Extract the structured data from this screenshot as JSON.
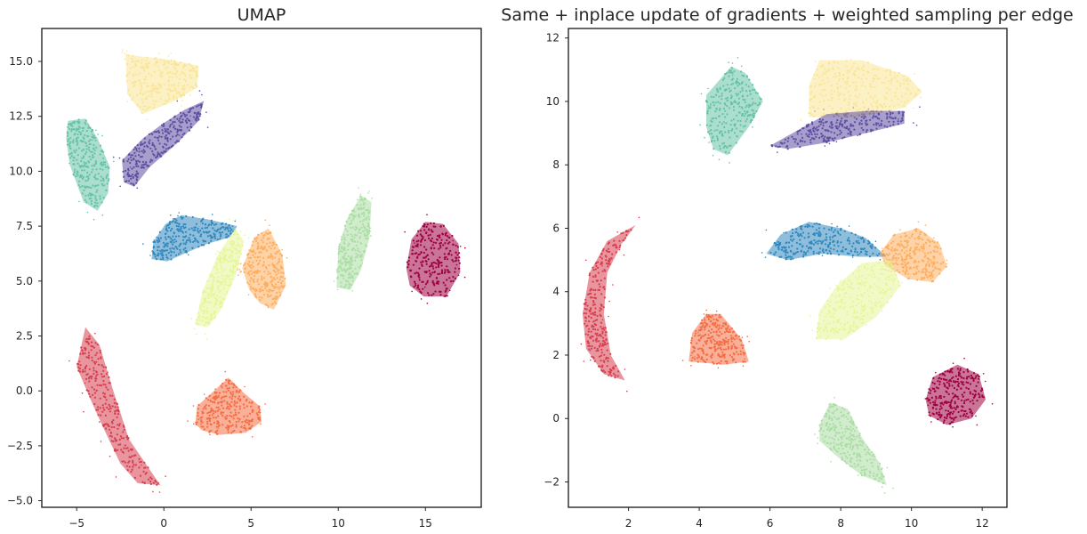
{
  "chart_data": [
    {
      "type": "scatter",
      "title": "UMAP",
      "xlabel": "",
      "ylabel": "",
      "xlim": [
        -7,
        18.2
      ],
      "ylim": [
        -5.3,
        16.5
      ],
      "xticks": [
        -5,
        0,
        5,
        10,
        15
      ],
      "yticks": [
        -5.0,
        -2.5,
        0.0,
        2.5,
        5.0,
        7.5,
        10.0,
        12.5,
        15.0
      ],
      "ytick_labels": [
        "−5.0",
        "−2.5",
        "0.0",
        "2.5",
        "5.0",
        "7.5",
        "10.0",
        "12.5",
        "15.0"
      ],
      "xtick_labels": [
        "−5",
        "0",
        "5",
        "10",
        "15"
      ],
      "grid": false,
      "clusters": [
        {
          "color": "#f9e596",
          "polygon": [
            [
              -2.2,
              15.3
            ],
            [
              0.2,
              15.1
            ],
            [
              2,
              14.8
            ],
            [
              1.9,
              13.8
            ],
            [
              0.6,
              13.2
            ],
            [
              -1.2,
              12.6
            ],
            [
              -2.1,
              13.5
            ]
          ]
        },
        {
          "color": "#5e4fa2",
          "polygon": [
            [
              -2.3,
              9.5
            ],
            [
              -2.4,
              10.5
            ],
            [
              -1.2,
              11.5
            ],
            [
              0,
              12.2
            ],
            [
              1.2,
              12.8
            ],
            [
              2.3,
              13.2
            ],
            [
              2.0,
              12.3
            ],
            [
              0.8,
              11.3
            ],
            [
              -0.8,
              10.2
            ],
            [
              -1.7,
              9.3
            ]
          ]
        },
        {
          "color": "#66c2a5",
          "polygon": [
            [
              -5.5,
              12.3
            ],
            [
              -4.5,
              12.4
            ],
            [
              -3.8,
              11.5
            ],
            [
              -3.1,
              10.2
            ],
            [
              -3.2,
              9.0
            ],
            [
              -3.8,
              8.2
            ],
            [
              -4.6,
              8.6
            ],
            [
              -5.4,
              10.3
            ],
            [
              -5.6,
              11.5
            ]
          ]
        },
        {
          "color": "#3288bd",
          "polygon": [
            [
              -0.7,
              6.0
            ],
            [
              -0.6,
              6.8
            ],
            [
              0.1,
              7.6
            ],
            [
              1.0,
              8.0
            ],
            [
              2.6,
              7.8
            ],
            [
              4.2,
              7.5
            ],
            [
              3.8,
              7.0
            ],
            [
              2.5,
              6.7
            ],
            [
              1.3,
              6.3
            ],
            [
              0.2,
              5.9
            ]
          ]
        },
        {
          "color": "#e6f598",
          "polygon": [
            [
              1.8,
              3.0
            ],
            [
              2.2,
              4.5
            ],
            [
              3.1,
              6.2
            ],
            [
              4.1,
              7.4
            ],
            [
              4.6,
              6.8
            ],
            [
              4.1,
              5.2
            ],
            [
              3.2,
              3.6
            ],
            [
              2.5,
              2.9
            ]
          ]
        },
        {
          "color": "#fdae61",
          "polygon": [
            [
              4.5,
              5.6
            ],
            [
              5.2,
              7.0
            ],
            [
              6.0,
              7.4
            ],
            [
              6.8,
              6.2
            ],
            [
              7.0,
              4.8
            ],
            [
              6.3,
              3.7
            ],
            [
              5.5,
              4.0
            ],
            [
              4.9,
              4.6
            ]
          ]
        },
        {
          "color": "#abdda4",
          "polygon": [
            [
              9.9,
              4.7
            ],
            [
              10.0,
              6.5
            ],
            [
              10.5,
              7.8
            ],
            [
              11.3,
              8.9
            ],
            [
              11.9,
              8.6
            ],
            [
              11.8,
              7.0
            ],
            [
              11.3,
              5.5
            ],
            [
              10.7,
              4.6
            ]
          ]
        },
        {
          "color": "#9e0142",
          "polygon": [
            [
              13.9,
              5.6
            ],
            [
              14.2,
              6.9
            ],
            [
              15.0,
              7.7
            ],
            [
              16.0,
              7.6
            ],
            [
              16.9,
              6.7
            ],
            [
              17.0,
              5.4
            ],
            [
              16.2,
              4.3
            ],
            [
              14.9,
              4.3
            ],
            [
              14.1,
              4.8
            ]
          ]
        },
        {
          "color": "#d53e4f",
          "polygon": [
            [
              -5.0,
              1.1
            ],
            [
              -4.5,
              2.9
            ],
            [
              -3.7,
              2.1
            ],
            [
              -2.9,
              0.0
            ],
            [
              -2.0,
              -2.2
            ],
            [
              -0.2,
              -4.3
            ],
            [
              -1.5,
              -4.2
            ],
            [
              -2.5,
              -3.3
            ],
            [
              -3.4,
              -1.8
            ],
            [
              -4.2,
              -0.4
            ]
          ]
        },
        {
          "color": "#f46d43",
          "polygon": [
            [
              1.8,
              -1.5
            ],
            [
              1.9,
              -0.7
            ],
            [
              2.6,
              -0.2
            ],
            [
              3.7,
              0.6
            ],
            [
              4.6,
              -0.1
            ],
            [
              5.5,
              -0.7
            ],
            [
              5.6,
              -1.4
            ],
            [
              4.7,
              -1.9
            ],
            [
              3.2,
              -2.0
            ],
            [
              2.2,
              -1.8
            ]
          ]
        }
      ]
    },
    {
      "type": "scatter",
      "title": "Same + inplace update of gradients + weighted sampling per edge",
      "xlabel": "",
      "ylabel": "",
      "xlim": [
        0.3,
        12.7
      ],
      "ylim": [
        -2.8,
        12.3
      ],
      "xticks": [
        2,
        4,
        6,
        8,
        10,
        12
      ],
      "yticks": [
        -2,
        0,
        2,
        4,
        6,
        8,
        10,
        12
      ],
      "ytick_labels": [
        "−2",
        "0",
        "2",
        "4",
        "6",
        "8",
        "10",
        "12"
      ],
      "xtick_labels": [
        "2",
        "4",
        "6",
        "8",
        "10",
        "12"
      ],
      "grid": false,
      "clusters": [
        {
          "color": "#f9e596",
          "polygon": [
            [
              7.1,
              9.5
            ],
            [
              7.1,
              10.5
            ],
            [
              7.4,
              11.3
            ],
            [
              8.6,
              11.3
            ],
            [
              9.9,
              10.8
            ],
            [
              10.3,
              10.3
            ],
            [
              9.8,
              9.8
            ],
            [
              8.5,
              9.5
            ]
          ]
        },
        {
          "color": "#5e4fa2",
          "polygon": [
            [
              6.0,
              8.6
            ],
            [
              6.8,
              9.1
            ],
            [
              7.6,
              9.6
            ],
            [
              8.7,
              9.7
            ],
            [
              9.8,
              9.7
            ],
            [
              9.8,
              9.3
            ],
            [
              8.7,
              9.0
            ],
            [
              7.6,
              8.7
            ],
            [
              6.5,
              8.5
            ]
          ]
        },
        {
          "color": "#66c2a5",
          "polygon": [
            [
              4.2,
              9.2
            ],
            [
              4.2,
              10.2
            ],
            [
              4.9,
              11.1
            ],
            [
              5.3,
              10.9
            ],
            [
              5.8,
              10.0
            ],
            [
              5.4,
              9.2
            ],
            [
              4.8,
              8.3
            ],
            [
              4.4,
              8.5
            ]
          ]
        },
        {
          "color": "#3288bd",
          "polygon": [
            [
              5.9,
              5.2
            ],
            [
              6.3,
              5.8
            ],
            [
              7.1,
              6.2
            ],
            [
              8.0,
              6.0
            ],
            [
              8.7,
              5.7
            ],
            [
              9.3,
              5.1
            ],
            [
              8.5,
              5.1
            ],
            [
              7.5,
              5.2
            ],
            [
              6.5,
              5.0
            ]
          ]
        },
        {
          "color": "#fdae61",
          "polygon": [
            [
              9.1,
              5.2
            ],
            [
              9.5,
              5.8
            ],
            [
              10.2,
              6.0
            ],
            [
              10.8,
              5.5
            ],
            [
              11.0,
              4.8
            ],
            [
              10.6,
              4.3
            ],
            [
              9.9,
              4.4
            ],
            [
              9.3,
              4.8
            ]
          ]
        },
        {
          "color": "#e6f598",
          "polygon": [
            [
              7.3,
              2.5
            ],
            [
              7.4,
              3.4
            ],
            [
              7.9,
              4.2
            ],
            [
              8.6,
              4.9
            ],
            [
              9.4,
              5.0
            ],
            [
              9.7,
              4.2
            ],
            [
              9.0,
              3.2
            ],
            [
              8.1,
              2.5
            ]
          ]
        },
        {
          "color": "#d53e4f",
          "polygon": [
            [
              2.2,
              6.1
            ],
            [
              1.4,
              5.6
            ],
            [
              0.9,
              4.6
            ],
            [
              0.7,
              3.3
            ],
            [
              0.8,
              2.2
            ],
            [
              1.3,
              1.4
            ],
            [
              1.9,
              1.2
            ],
            [
              1.5,
              2.0
            ],
            [
              1.3,
              3.3
            ],
            [
              1.4,
              4.6
            ],
            [
              1.8,
              5.5
            ]
          ]
        },
        {
          "color": "#f46d43",
          "polygon": [
            [
              3.7,
              1.8
            ],
            [
              3.8,
              2.7
            ],
            [
              4.2,
              3.3
            ],
            [
              4.6,
              3.3
            ],
            [
              5.2,
              2.5
            ],
            [
              5.4,
              1.8
            ],
            [
              4.7,
              1.7
            ]
          ]
        },
        {
          "color": "#9e0142",
          "polygon": [
            [
              10.4,
              0.6
            ],
            [
              10.6,
              1.3
            ],
            [
              11.3,
              1.7
            ],
            [
              11.9,
              1.4
            ],
            [
              12.1,
              0.6
            ],
            [
              11.7,
              0.0
            ],
            [
              11.0,
              -0.2
            ],
            [
              10.5,
              0.1
            ]
          ]
        },
        {
          "color": "#abdda4",
          "polygon": [
            [
              7.4,
              -0.2
            ],
            [
              7.7,
              0.5
            ],
            [
              8.2,
              0.3
            ],
            [
              8.6,
              -0.6
            ],
            [
              9.1,
              -1.4
            ],
            [
              9.3,
              -2.1
            ],
            [
              8.6,
              -1.8
            ],
            [
              7.9,
              -1.2
            ],
            [
              7.4,
              -0.7
            ]
          ]
        }
      ]
    }
  ]
}
